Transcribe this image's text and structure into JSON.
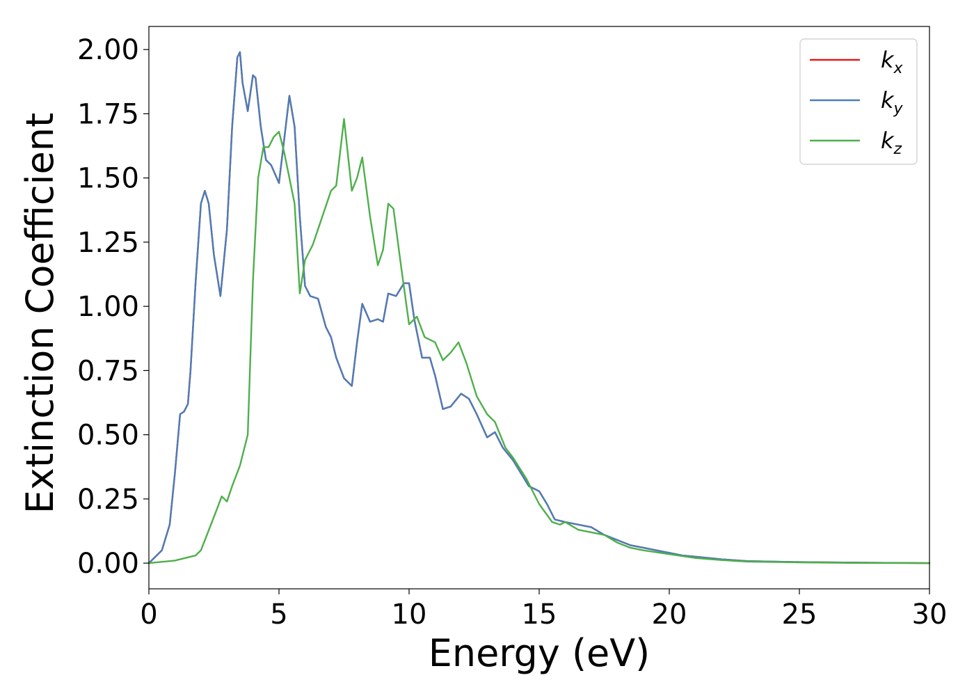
{
  "chart_data": {
    "type": "line",
    "xlabel": "Energy (eV)",
    "ylabel": "Extinction Coefficient",
    "xlim": [
      0,
      30
    ],
    "ylim": [
      -0.1,
      2.09
    ],
    "xticks": [
      0,
      5,
      10,
      15,
      20,
      25,
      30
    ],
    "xtick_labels": [
      "0",
      "5",
      "10",
      "15",
      "20",
      "25",
      "30"
    ],
    "yticks": [
      0,
      0.25,
      0.5,
      0.75,
      1.0,
      1.25,
      1.5,
      1.75,
      2.0
    ],
    "ytick_labels": [
      "0.00",
      "0.25",
      "0.50",
      "0.75",
      "1.00",
      "1.25",
      "1.50",
      "1.75",
      "2.00"
    ],
    "grid": false,
    "legend_position": "top-right",
    "series": [
      {
        "name": "kx",
        "legend_base": "k",
        "legend_sub": "x",
        "color": "#e41a1c",
        "x": [
          0,
          0.5,
          0.8,
          1.0,
          1.2,
          1.35,
          1.5,
          1.6,
          1.8,
          2.0,
          2.15,
          2.3,
          2.5,
          2.75,
          3.0,
          3.2,
          3.4,
          3.5,
          3.6,
          3.8,
          4.0,
          4.1,
          4.3,
          4.5,
          4.7,
          5.0,
          5.2,
          5.4,
          5.6,
          5.8,
          6.0,
          6.2,
          6.5,
          6.8,
          7.0,
          7.2,
          7.5,
          7.8,
          8.0,
          8.2,
          8.5,
          8.8,
          9.0,
          9.2,
          9.5,
          9.8,
          10.0,
          10.2,
          10.5,
          10.8,
          11.0,
          11.3,
          11.6,
          12.0,
          12.3,
          12.6,
          13.0,
          13.3,
          13.6,
          14.0,
          14.3,
          14.6,
          15.0,
          15.3,
          15.6,
          16.0,
          16.5,
          17.0,
          17.5,
          18.0,
          18.5,
          19.0,
          19.5,
          20.0,
          20.5,
          21.0,
          22.0,
          23.0,
          25.0,
          27.0,
          30.0
        ],
        "y": [
          0.0,
          0.05,
          0.15,
          0.35,
          0.58,
          0.59,
          0.62,
          0.75,
          1.1,
          1.4,
          1.45,
          1.4,
          1.2,
          1.04,
          1.3,
          1.7,
          1.97,
          1.99,
          1.87,
          1.76,
          1.9,
          1.89,
          1.7,
          1.57,
          1.55,
          1.48,
          1.65,
          1.82,
          1.7,
          1.35,
          1.08,
          1.04,
          1.03,
          0.92,
          0.88,
          0.8,
          0.72,
          0.69,
          0.86,
          1.01,
          0.94,
          0.95,
          0.94,
          1.05,
          1.04,
          1.09,
          1.09,
          0.95,
          0.8,
          0.8,
          0.73,
          0.6,
          0.61,
          0.66,
          0.64,
          0.58,
          0.49,
          0.51,
          0.45,
          0.4,
          0.35,
          0.3,
          0.28,
          0.23,
          0.17,
          0.16,
          0.15,
          0.14,
          0.11,
          0.09,
          0.07,
          0.06,
          0.05,
          0.04,
          0.03,
          0.025,
          0.015,
          0.008,
          0.004,
          0.002,
          0.0
        ]
      },
      {
        "name": "ky",
        "legend_base": "k",
        "legend_sub": "y",
        "color": "#4a7db8",
        "x": [
          0,
          0.5,
          0.8,
          1.0,
          1.2,
          1.35,
          1.5,
          1.6,
          1.8,
          2.0,
          2.15,
          2.3,
          2.5,
          2.75,
          3.0,
          3.2,
          3.4,
          3.5,
          3.6,
          3.8,
          4.0,
          4.1,
          4.3,
          4.5,
          4.7,
          5.0,
          5.2,
          5.4,
          5.6,
          5.8,
          6.0,
          6.2,
          6.5,
          6.8,
          7.0,
          7.2,
          7.5,
          7.8,
          8.0,
          8.2,
          8.5,
          8.8,
          9.0,
          9.2,
          9.5,
          9.8,
          10.0,
          10.2,
          10.5,
          10.8,
          11.0,
          11.3,
          11.6,
          12.0,
          12.3,
          12.6,
          13.0,
          13.3,
          13.6,
          14.0,
          14.3,
          14.6,
          15.0,
          15.3,
          15.6,
          16.0,
          16.5,
          17.0,
          17.5,
          18.0,
          18.5,
          19.0,
          19.5,
          20.0,
          20.5,
          21.0,
          22.0,
          23.0,
          25.0,
          27.0,
          30.0
        ],
        "y": [
          0.0,
          0.05,
          0.15,
          0.35,
          0.58,
          0.59,
          0.62,
          0.75,
          1.1,
          1.4,
          1.45,
          1.4,
          1.2,
          1.04,
          1.3,
          1.7,
          1.97,
          1.99,
          1.87,
          1.76,
          1.9,
          1.89,
          1.7,
          1.57,
          1.55,
          1.48,
          1.65,
          1.82,
          1.7,
          1.35,
          1.08,
          1.04,
          1.03,
          0.92,
          0.88,
          0.8,
          0.72,
          0.69,
          0.86,
          1.01,
          0.94,
          0.95,
          0.94,
          1.05,
          1.04,
          1.09,
          1.09,
          0.95,
          0.8,
          0.8,
          0.73,
          0.6,
          0.61,
          0.66,
          0.64,
          0.58,
          0.49,
          0.51,
          0.45,
          0.4,
          0.35,
          0.3,
          0.28,
          0.23,
          0.17,
          0.16,
          0.15,
          0.14,
          0.11,
          0.09,
          0.07,
          0.06,
          0.05,
          0.04,
          0.03,
          0.025,
          0.015,
          0.008,
          0.004,
          0.002,
          0.0
        ]
      },
      {
        "name": "kz",
        "legend_base": "k",
        "legend_sub": "z",
        "color": "#4daf4a",
        "x": [
          0,
          1.0,
          1.8,
          2.0,
          2.5,
          2.8,
          3.0,
          3.2,
          3.5,
          3.8,
          4.0,
          4.2,
          4.4,
          4.6,
          4.8,
          5.0,
          5.2,
          5.4,
          5.6,
          5.8,
          6.0,
          6.3,
          6.6,
          7.0,
          7.2,
          7.5,
          7.8,
          8.0,
          8.2,
          8.5,
          8.8,
          9.0,
          9.2,
          9.4,
          9.7,
          10.0,
          10.3,
          10.6,
          11.0,
          11.3,
          11.6,
          11.9,
          12.2,
          12.6,
          13.0,
          13.3,
          13.7,
          14.0,
          14.5,
          15.0,
          15.5,
          15.8,
          16.0,
          16.5,
          17.0,
          17.5,
          18.0,
          18.5,
          19.0,
          20.0,
          21.0,
          22.0,
          23.0,
          25.0,
          27.0,
          30.0
        ],
        "y": [
          0.0,
          0.01,
          0.03,
          0.05,
          0.18,
          0.26,
          0.24,
          0.3,
          0.38,
          0.5,
          1.1,
          1.5,
          1.62,
          1.62,
          1.66,
          1.68,
          1.6,
          1.5,
          1.4,
          1.05,
          1.18,
          1.24,
          1.33,
          1.45,
          1.47,
          1.73,
          1.45,
          1.5,
          1.58,
          1.35,
          1.16,
          1.22,
          1.4,
          1.38,
          1.15,
          0.93,
          0.96,
          0.88,
          0.86,
          0.79,
          0.82,
          0.86,
          0.78,
          0.65,
          0.58,
          0.55,
          0.45,
          0.41,
          0.33,
          0.23,
          0.16,
          0.15,
          0.16,
          0.13,
          0.12,
          0.11,
          0.08,
          0.06,
          0.05,
          0.035,
          0.02,
          0.012,
          0.006,
          0.003,
          0.001,
          0.0
        ]
      }
    ]
  }
}
